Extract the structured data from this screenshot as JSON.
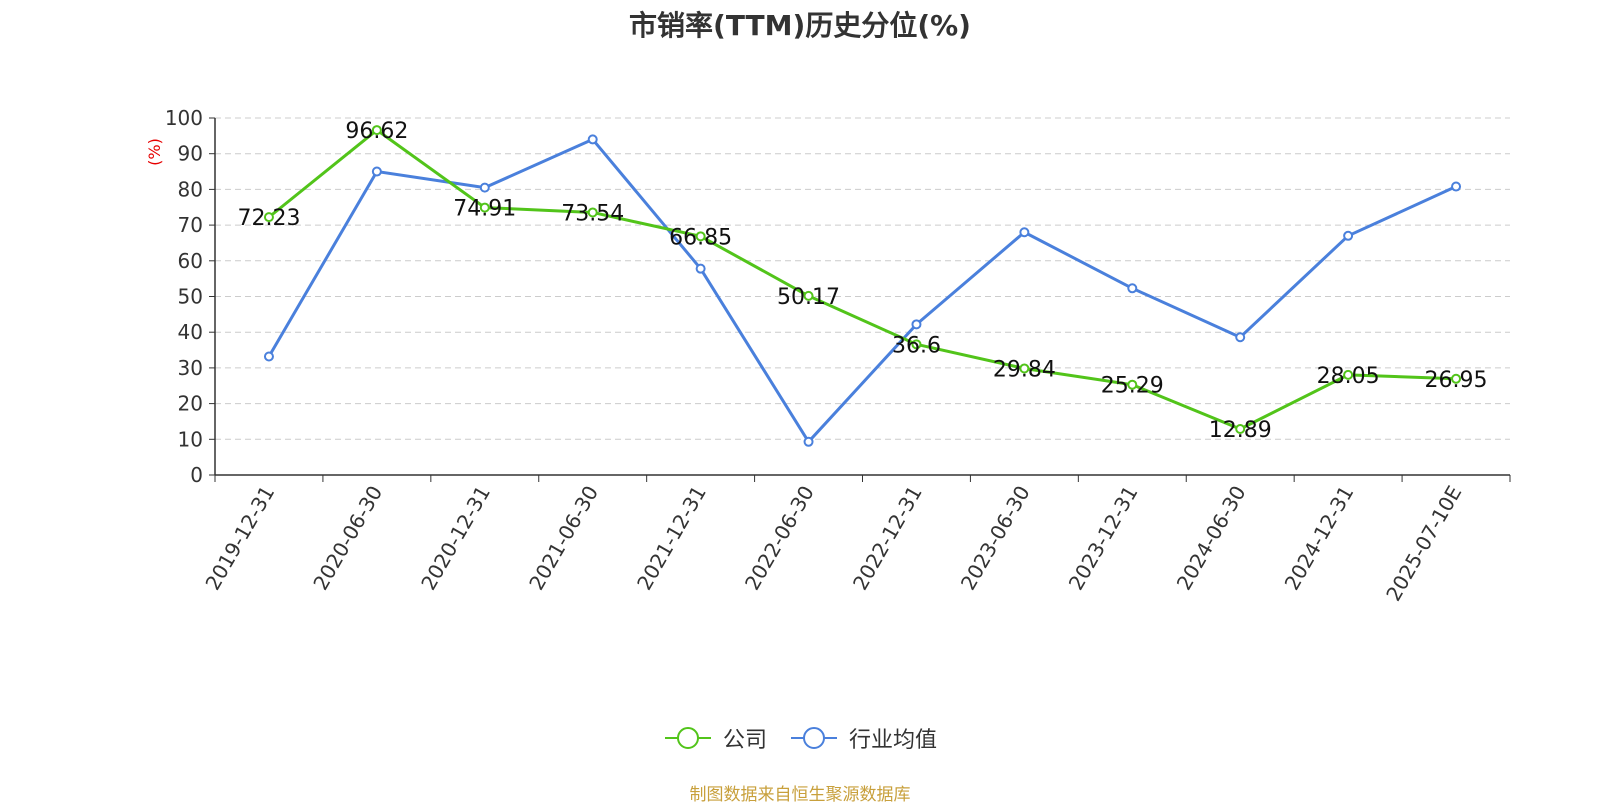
{
  "chart_data": {
    "type": "line",
    "title": "市销率(TTM)历史分位(%)",
    "ylabel": "(%)",
    "xlabel": "",
    "ylim": [
      0,
      100
    ],
    "yticks": [
      0,
      10,
      20,
      30,
      40,
      50,
      60,
      70,
      80,
      90,
      100
    ],
    "categories": [
      "2019-12-31",
      "2020-06-30",
      "2020-12-31",
      "2021-06-30",
      "2021-12-31",
      "2022-06-30",
      "2022-12-31",
      "2023-06-30",
      "2023-12-31",
      "2024-06-30",
      "2024-12-31",
      "2025-07-10E"
    ],
    "series": [
      {
        "name": "公司",
        "color": "#52c41a",
        "values": [
          72.23,
          96.62,
          74.91,
          73.54,
          66.85,
          50.17,
          36.6,
          29.84,
          25.29,
          12.89,
          28.05,
          26.95
        ],
        "show_labels": true
      },
      {
        "name": "行业均值",
        "color": "#4a80dc",
        "values": [
          33.2,
          85,
          80.5,
          94,
          57.8,
          9.3,
          42.2,
          68,
          52.3,
          38.6,
          67,
          80.8
        ],
        "show_labels": false
      }
    ],
    "grid": true,
    "legend_position": "bottom-center"
  },
  "source_note": "制图数据来自恒生聚源数据库"
}
